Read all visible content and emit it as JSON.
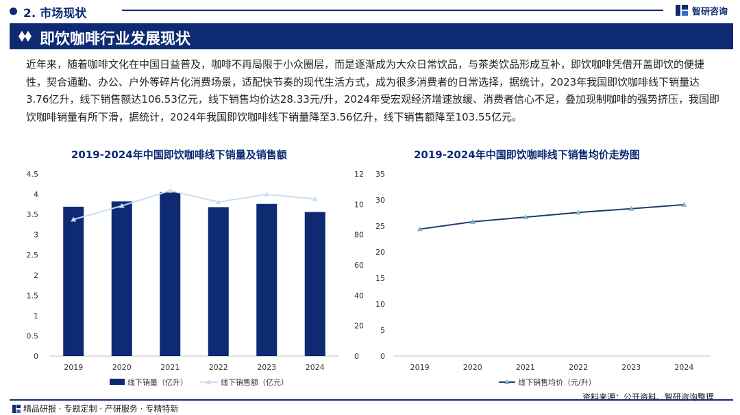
{
  "header": {
    "section_title": "2. 市场现状",
    "brand": "智研咨询",
    "page_title": "即饮咖啡行业发展现状"
  },
  "paragraph": "近年来，随着咖啡文化在中国日益普及，咖啡不再局限于小众圈层，而是逐渐成为大众日常饮品，与茶类饮品形成互补，即饮咖啡凭借开盖即饮的便捷性，契合通勤、办公、户外等碎片化消费场景，适配快节奏的现代生活方式，成为很多消费者的日常选择，据统计，2023年我国即饮咖啡线下销量达3.76亿升，线下销售额达106.53亿元，线下销售均价达28.33元/升，2024年受宏观经济增速放缓、消费者信心不足，叠加现制咖啡的强势挤压，我国即饮咖啡销量有所下滑，据统计，2024年我国即饮咖啡线下销量降至3.56亿升，线下销售额降至103.55亿元。",
  "footer": {
    "tagline": "精品研报 · 专题定制 · 产研服务 · 专精特新",
    "source": "资料来源：公开资料、智研咨询整理"
  },
  "colors": {
    "navy": "#0d2a73",
    "light_line": "#c9dff2",
    "line2": "#1f3a6e",
    "marker": "#7ab3d3"
  },
  "chart_data": [
    {
      "type": "bar",
      "title": "2019-2024年中国即饮咖啡线下销量及销售额",
      "categories": [
        "2019",
        "2020",
        "2021",
        "2022",
        "2023",
        "2024"
      ],
      "series": [
        {
          "name": "线下销量（亿升）",
          "type": "bar",
          "axis": "left",
          "values": [
            3.69,
            3.82,
            4.05,
            3.68,
            3.76,
            3.56
          ]
        },
        {
          "name": "线下销售额（亿元）",
          "type": "line",
          "axis": "right",
          "values": [
            90.0,
            99.0,
            109.0,
            101.5,
            106.53,
            103.55
          ]
        }
      ],
      "left_axis": {
        "min": 0,
        "max": 4.5,
        "ticks": [
          "0",
          "0.5",
          "1",
          "1.5",
          "2",
          "2.5",
          "3",
          "3.5",
          "4",
          "4.5"
        ]
      },
      "right_axis": {
        "min": 0,
        "max": 120,
        "ticks": [
          "0",
          "20",
          "40",
          "60",
          "80",
          "100",
          "120"
        ]
      },
      "legend": [
        "线下销量（亿升）",
        "线下销售额（亿元）"
      ],
      "legend_position": "bottom"
    },
    {
      "type": "line",
      "title": "2019-2024年中国即饮咖啡线下销售均价走势图",
      "categories": [
        "2019",
        "2020",
        "2021",
        "2022",
        "2023",
        "2024"
      ],
      "series": [
        {
          "name": "线下销售均价（元/升）",
          "values": [
            24.4,
            25.8,
            26.7,
            27.6,
            28.33,
            29.1
          ]
        }
      ],
      "y_axis": {
        "min": 0,
        "max": 35,
        "ticks": [
          "0",
          "5",
          "10",
          "15",
          "20",
          "25",
          "30",
          "35"
        ]
      },
      "legend": [
        "线下销售均价（元/升）"
      ],
      "legend_position": "bottom"
    }
  ]
}
